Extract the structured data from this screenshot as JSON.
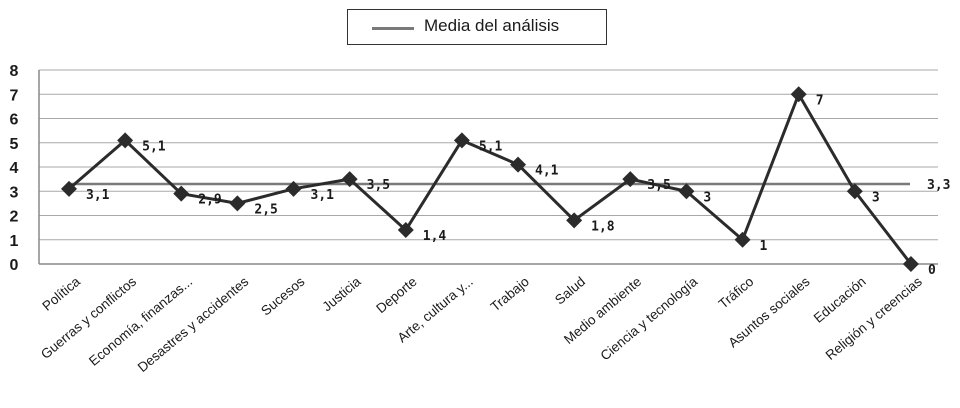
{
  "chart_data": {
    "type": "line",
    "title": "",
    "xlabel": "",
    "ylabel": "",
    "ylim": [
      0,
      8
    ],
    "yticks": [
      0,
      1,
      2,
      3,
      4,
      5,
      6,
      7,
      8
    ],
    "grid": true,
    "legend_position": "top",
    "categories": [
      "Política",
      "Guerras y conflictos",
      "Economía, finanzas...",
      "Desastres y accidentes",
      "Sucesos",
      "Justicia",
      "Deporte",
      "Arte, cultura y...",
      "Trabajo",
      "Salud",
      "Medio ambiente",
      "Ciencia y tecnología",
      "Tráfico",
      "Asuntos sociales",
      "Educación",
      "Religión y creencias"
    ],
    "series": [
      {
        "values": [
          3.1,
          5.1,
          2.9,
          2.5,
          3.1,
          3.5,
          1.4,
          5.1,
          4.1,
          1.8,
          3.5,
          3,
          1,
          7,
          3,
          0
        ],
        "labels": [
          "3,1",
          "5,1",
          "2,9",
          "2,5",
          "3,1",
          "3,5",
          "1,4",
          "5,1",
          "4,1",
          "1,8",
          "3,5",
          "3",
          "1",
          "7",
          "3",
          "0"
        ],
        "color": "#2b2b2b",
        "marker": "diamond"
      },
      {
        "name": "Media del análisis",
        "value": 3.3,
        "label": "3,3",
        "color": "#7a7a7a"
      }
    ]
  }
}
